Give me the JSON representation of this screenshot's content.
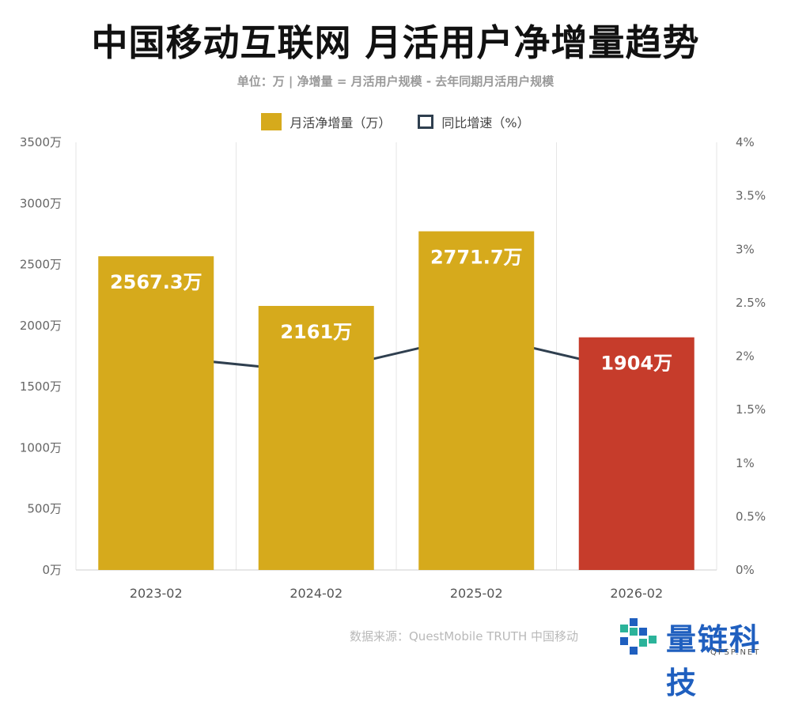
{
  "title": "中国移动互联网 月活用户净增量趋势",
  "subtitle": "单位：万 | 净增量 = 月活用户规模 - 去年同期月活用户规模",
  "legend": {
    "bar_label": "月活净增量（万）",
    "line_label": "同比增速（%）"
  },
  "source": "数据来源：QuestMobile TRUTH 中国移动",
  "watermark": {
    "brand": "量链科技",
    "url": "QFSP.NET"
  },
  "colors": {
    "bar_gold": "#d6aa1c",
    "bar_red": "#c63c2b",
    "line": "#2f3f4f",
    "grid": "#e6e6e6",
    "axis_text": "#666666"
  },
  "chart_data": {
    "type": "bar",
    "title": "中国移动互联网 月活用户净增量趋势",
    "subtitle": "单位：万 | 净增量 = 月活用户规模 - 去年同期月活用户规模",
    "categories": [
      "2023-02",
      "2024-02",
      "2025-02",
      "2026-02"
    ],
    "series": [
      {
        "name": "月活净增量（万）",
        "type": "bar",
        "axis": "left",
        "values": [
          2567.3,
          2161,
          2771.7,
          1904
        ],
        "labels": [
          "2567.3万",
          "2161万",
          "2771.7万",
          "1904万"
        ],
        "colors": [
          "#d6aa1c",
          "#d6aa1c",
          "#d6aa1c",
          "#c63c2b"
        ]
      },
      {
        "name": "同比增速（%）",
        "type": "line",
        "axis": "right",
        "values": [
          2.0,
          1.85,
          2.2,
          1.85
        ]
      }
    ],
    "ylim_left": [
      0,
      3500
    ],
    "yticks_left": [
      "0万",
      "500万",
      "1000万",
      "1500万",
      "2000万",
      "2500万",
      "3000万",
      "3500万"
    ],
    "ylim_right": [
      0,
      4
    ],
    "yticks_right": [
      "0%",
      "0.5%",
      "1%",
      "1.5%",
      "2%",
      "2.5%",
      "3%",
      "3.5%",
      "4%"
    ],
    "grid": "vertical",
    "legend": "top-center"
  }
}
